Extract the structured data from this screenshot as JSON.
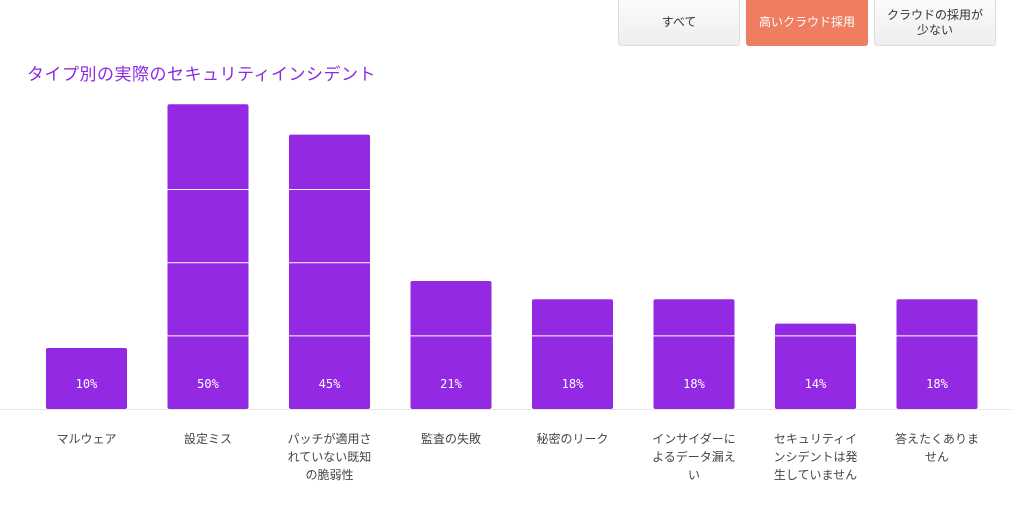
{
  "filters": [
    {
      "label": "すべて",
      "active": false
    },
    {
      "label": "高いクラウド採用",
      "active": true
    },
    {
      "label": "クラウドの採用が少ない",
      "active": false
    }
  ],
  "chart_data": {
    "type": "bar",
    "title": "タイプ別の実際のセキュリティインシデント",
    "categories": [
      "マルウェア",
      "設定ミス",
      "パッチが適用されていない既知の脆弱性",
      "監査の失敗",
      "秘密のリーク",
      "インサイダーによるデータ漏えい",
      "セキュリティインシデントは発生していません",
      "答えたくありません"
    ],
    "values": [
      10,
      50,
      45,
      21,
      18,
      18,
      14,
      18
    ],
    "value_labels": [
      "10%",
      "50%",
      "45%",
      "21%",
      "18%",
      "18%",
      "14%",
      "18%"
    ],
    "ylim": [
      0,
      52
    ],
    "grid": true,
    "bar_color": "#9329e2"
  }
}
